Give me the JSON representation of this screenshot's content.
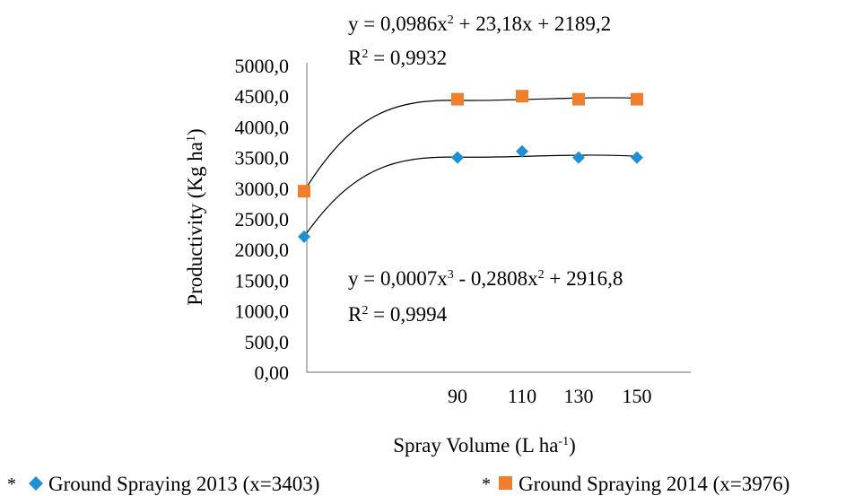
{
  "chart_data": {
    "type": "scatter",
    "xlabel_main": "Spray Volume (L ha",
    "xlabel_sup": "-1",
    "xlabel_end": ")",
    "ylabel_main": "Productivity (Kg ha",
    "ylabel_sup": "1",
    "ylabel_end": ")",
    "x_ticks": [
      "90",
      "110",
      "130",
      "150"
    ],
    "y_ticks": [
      "0,00",
      "500,0",
      "1000,0",
      "1500,0",
      "2000,0",
      "2500,0",
      "3000,0",
      "3500,0",
      "4000,0",
      "4500,0",
      "5000,0"
    ],
    "ylim": [
      0,
      5000
    ],
    "x": [
      0,
      90,
      110,
      130,
      150
    ],
    "series": [
      {
        "name": "Ground Spraying 2013 (x=3403)",
        "marker": "diamond",
        "color": "#1f8fd6",
        "values": [
          2210,
          3500,
          3600,
          3500,
          3500
        ]
      },
      {
        "name": "Ground Spraying 2014 (x=3976)",
        "marker": "square",
        "color": "#f07e2a",
        "values": [
          2950,
          4450,
          4500,
          4450,
          4450
        ]
      }
    ],
    "legend_prefix": "*",
    "equations": [
      {
        "series": "Ground Spraying 2014 (x=3976)",
        "eq": [
          "y = 0,0986x",
          "2",
          " + 23,18x + 2189,2"
        ],
        "r2": [
          "R",
          "2",
          " = 0,9932"
        ]
      },
      {
        "series": "Ground Spraying 2013 (x=3403)",
        "eq": [
          "y = 0,0007x",
          "3",
          " - 0,2808x",
          "2",
          " + 2916,8"
        ],
        "r2": [
          "R",
          "2",
          " = 0,9994"
        ]
      }
    ],
    "legend_position": "bottom",
    "grid": false
  }
}
